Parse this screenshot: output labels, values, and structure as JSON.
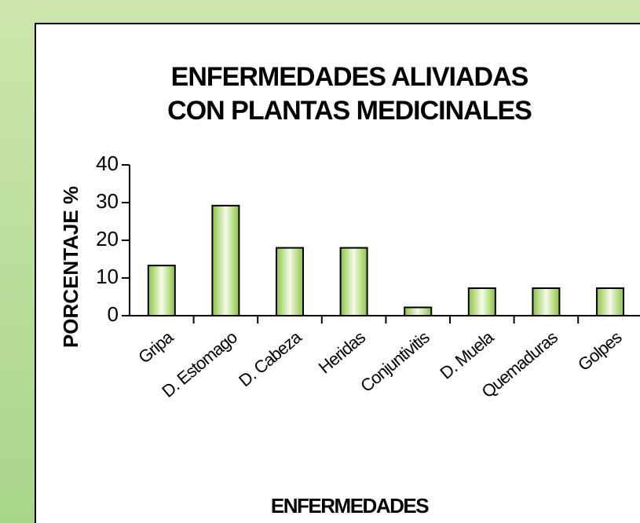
{
  "chart_data": {
    "type": "bar",
    "title": [
      "ENFERMEDADES ALIVIADAS",
      "CON PLANTAS MEDICINALES"
    ],
    "x_label": "ENFERMEDADES",
    "y_label": "PORCENTAJE %",
    "categories": [
      "Gripa",
      "D. Estomago",
      "D. Cabeza",
      "Heridas",
      "Conjuntivitis",
      "D. Muela",
      "Quemaduras",
      "Golpes"
    ],
    "values": [
      13.3,
      29.2,
      18,
      18,
      2.2,
      7.3,
      7.3,
      7.3
    ],
    "color": "#8cc63e",
    "ylim": [
      0,
      40
    ],
    "yticks": [
      0,
      10,
      20,
      30,
      40
    ],
    "grid": false
  }
}
